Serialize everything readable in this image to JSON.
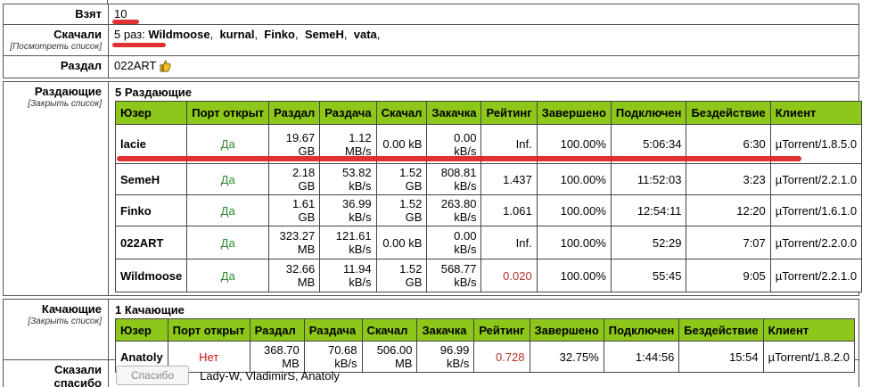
{
  "taken": {
    "label": "Взят",
    "value": "10"
  },
  "downloaded_by": {
    "label": "Скачали",
    "link": "[Посмотреть список]",
    "value_prefix": "5 раз:",
    "names": [
      "Wildmoose",
      "kurnal",
      "Finko",
      "SemeH",
      "vata"
    ]
  },
  "uploaded_by": {
    "label": "Раздал",
    "value": "022ART",
    "icon": "thumbs-up-icon"
  },
  "seeders": {
    "label": "Раздающие",
    "toggle_link": "[Закрыть список]",
    "title": "5 Раздающие",
    "headers": [
      "Юзер",
      "Порт открыт",
      "Раздал",
      "Раздача",
      "Скачал",
      "Закачка",
      "Рейтинг",
      "Завершено",
      "Подключен",
      "Бездействие",
      "Клиент"
    ],
    "rows": [
      {
        "user": "lacie",
        "port": "Да",
        "uploaded": "19.67 GB",
        "upspeed": "1.12 MB/s",
        "downloaded": "0.00 kB",
        "downspeed": "0.00 kB/s",
        "ratio": "Inf.",
        "done": "100.00%",
        "connected": "5:06:34",
        "idle": "6:30",
        "client": "µTorrent/1.8.5.0"
      },
      {
        "user": "SemeH",
        "port": "Да",
        "uploaded": "2.18 GB",
        "upspeed": "53.82 kB/s",
        "downloaded": "1.52 GB",
        "downspeed": "808.81 kB/s",
        "ratio": "1.437",
        "done": "100.00%",
        "connected": "11:52:03",
        "idle": "3:23",
        "client": "µTorrent/2.2.1.0"
      },
      {
        "user": "Finko",
        "port": "Да",
        "uploaded": "1.61 GB",
        "upspeed": "36.99 kB/s",
        "downloaded": "1.52 GB",
        "downspeed": "263.80 kB/s",
        "ratio": "1.061",
        "done": "100.00%",
        "connected": "12:54:11",
        "idle": "12:20",
        "client": "µTorrent/1.6.1.0"
      },
      {
        "user": "022ART",
        "port": "Да",
        "uploaded": "323.27 MB",
        "upspeed": "121.61 kB/s",
        "downloaded": "0.00 kB",
        "downspeed": "0.00 kB/s",
        "ratio": "Inf.",
        "done": "100.00%",
        "connected": "52:29",
        "idle": "7:07",
        "client": "µTorrent/2.2.0.0"
      },
      {
        "user": "Wildmoose",
        "port": "Да",
        "uploaded": "32.66 MB",
        "upspeed": "11.94 kB/s",
        "downloaded": "1.52 GB",
        "downspeed": "568.77 kB/s",
        "ratio": "0.020",
        "ratio_red": true,
        "done": "100.00%",
        "connected": "55:45",
        "idle": "9:05",
        "client": "µTorrent/2.2.1.0"
      }
    ]
  },
  "leechers": {
    "label": "Качающие",
    "toggle_link": "[Закрыть список]",
    "title": "1 Качающие",
    "headers": [
      "Юзер",
      "Порт открыт",
      "Раздал",
      "Раздача",
      "Скачал",
      "Закачка",
      "Рейтинг",
      "Завершено",
      "Подключен",
      "Бездействие",
      "Клиент"
    ],
    "rows": [
      {
        "user": "Anatoly",
        "port": "Нет",
        "uploaded": "368.70 MB",
        "upspeed": "70.68 kB/s",
        "downloaded": "506.00 MB",
        "downspeed": "96.99 kB/s",
        "ratio": "0.728",
        "ratio_red": true,
        "done": "32.75%",
        "connected": "1:44:56",
        "idle": "15:54",
        "client": "µTorrent/1.8.2.0"
      }
    ]
  },
  "thanks": {
    "label": "Сказали спасибо",
    "button": "Спасибо",
    "names": "Lady-W, VladimirS, Anatoly"
  },
  "colors": {
    "header_green": "#8dc71a",
    "port_yes": "#2d8a2d",
    "port_no": "#cc1111",
    "ratio_low": "#b5342f",
    "annotation": "#e02020"
  }
}
